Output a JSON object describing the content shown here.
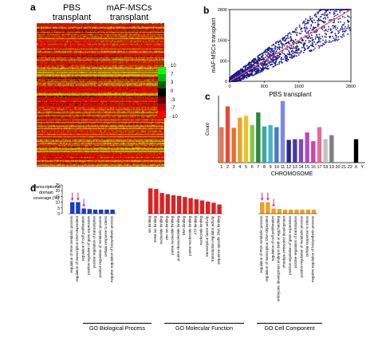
{
  "panels": {
    "a": {
      "letter": "a",
      "columns": [
        "PBS\ntransplant",
        "mAF-MSCs\ntransplant"
      ],
      "scale_ticks": [
        "10",
        "7",
        "3",
        "0",
        "-3",
        "-7",
        "-10"
      ],
      "scale_colors": [
        "#00ff00",
        "#00c000",
        "#006000",
        "#000000",
        "#600000",
        "#c00000",
        "#ff0000"
      ]
    },
    "b": {
      "letter": "b",
      "chart_data": {
        "type": "scatter",
        "xlabel": "PBS transplant",
        "ylabel": "mAF-MSCs transplant",
        "xticks": [
          0,
          800,
          1600,
          2800
        ],
        "yticks": [
          0,
          800,
          1600,
          2800
        ],
        "xlim": [
          0,
          2800
        ],
        "ylim": [
          0,
          2800
        ],
        "point_color": "#1a1a8c",
        "trend_color": "#ff4d4d"
      }
    },
    "c": {
      "letter": "c",
      "chart_data": {
        "type": "bar",
        "ylabel": "Count",
        "xlabel": "CHROMOSOME",
        "categories": [
          "1",
          "2",
          "3",
          "4",
          "5",
          "6",
          "7",
          "8",
          "9",
          "10",
          "11",
          "12",
          "13",
          "14",
          "15",
          "16",
          "17",
          "18",
          "19",
          "20",
          "21",
          "22",
          "X",
          "Y"
        ],
        "values": [
          530,
          840,
          520,
          670,
          700,
          560,
          750,
          540,
          560,
          530,
          920,
          340,
          350,
          350,
          450,
          320,
          530,
          350,
          410,
          0,
          0,
          0,
          350,
          0
        ],
        "colors": [
          "#e8734f",
          "#e8483b",
          "#f06a2a",
          "#f39a2a",
          "#f0c020",
          "#7fc64a",
          "#2a8a3a",
          "#3aa8a0",
          "#40b4c8",
          "#4a7ac8",
          "#7a8ae8",
          "#2a2a8a",
          "#4a3aa8",
          "#7a4ab8",
          "#b04ac0",
          "#d040b0",
          "#e86a9a",
          "#c0c0c0",
          "#808080",
          "#ffffff",
          "#ffffff",
          "#ffffff",
          "#000000",
          "#ffffff"
        ],
        "ylim": [
          0,
          1000
        ],
        "yticks": [
          0,
          200,
          400,
          600,
          800,
          1000
        ]
      }
    },
    "d": {
      "letter": "d",
      "ylabel_lines": [
        "Transcriptional",
        "domain",
        "coverage (%)"
      ],
      "yticks": [
        0,
        5,
        10,
        15,
        20,
        25
      ],
      "ylim": [
        0,
        25
      ],
      "chart_data": {
        "type": "bar",
        "series": [
          {
            "name": "GO Biological Process",
            "color": "#1a3ac8",
            "categories": [
              "regulation of RNA metabolic process",
              "regulation of transcription DNA-dependent",
              "regulation of cell proliferation",
              "positive regulation of gene expression",
              "positive regulation of transcription",
              "positive regulation of metabolic process",
              "cellular response to stress",
              "negative regulation of biosynthetic process"
            ],
            "values": [
              10,
              10,
              4.5,
              4,
              3.5,
              3.5,
              3.5,
              3.5
            ]
          },
          {
            "name": "GO Molecular Function",
            "color": "#e02020",
            "categories": [
              "ion binding",
              "metal ion binding",
              "nucleotide binding",
              "zinc ion binding",
              "purine nucleotide binding",
              "purine ribonucleotide binding",
              "DNA binding",
              "purine nucleoside binding",
              "ATP binding",
              "nucleoside binding",
              "transcription factor activity",
              "transcription regulator activity",
              "sequence-specific DNA binding"
            ],
            "values": [
              22,
              21.5,
              18,
              17,
              16,
              15.5,
              14.5,
              13.5,
              12.5,
              11.5,
              10.5,
              9.5,
              8
            ]
          },
          {
            "name": "GO Cell Component",
            "color": "#f0a020",
            "categories": [
              "regulation of RNA metabolic process",
              "regulation of transcription DNA-dependent",
              "regulation of cell proliferation",
              "embryonic development ending in birth or egg hatching",
              "chordate embryonic development",
              "positive regulation of gene expression",
              "positive regulation of transcription",
              "positive regulation of metabolic process",
              "cellular response to stress",
              "negative regulation of biosynthetic process"
            ],
            "values": [
              10,
              10,
              4.5,
              4,
              3.5,
              3.5,
              3.5,
              3.5,
              3.5,
              3.5
            ]
          }
        ],
        "arrow_color": "#e020a0"
      },
      "sections": [
        "GO Biological Process",
        "GO Molecular Function",
        "GO Cell Component"
      ]
    }
  }
}
